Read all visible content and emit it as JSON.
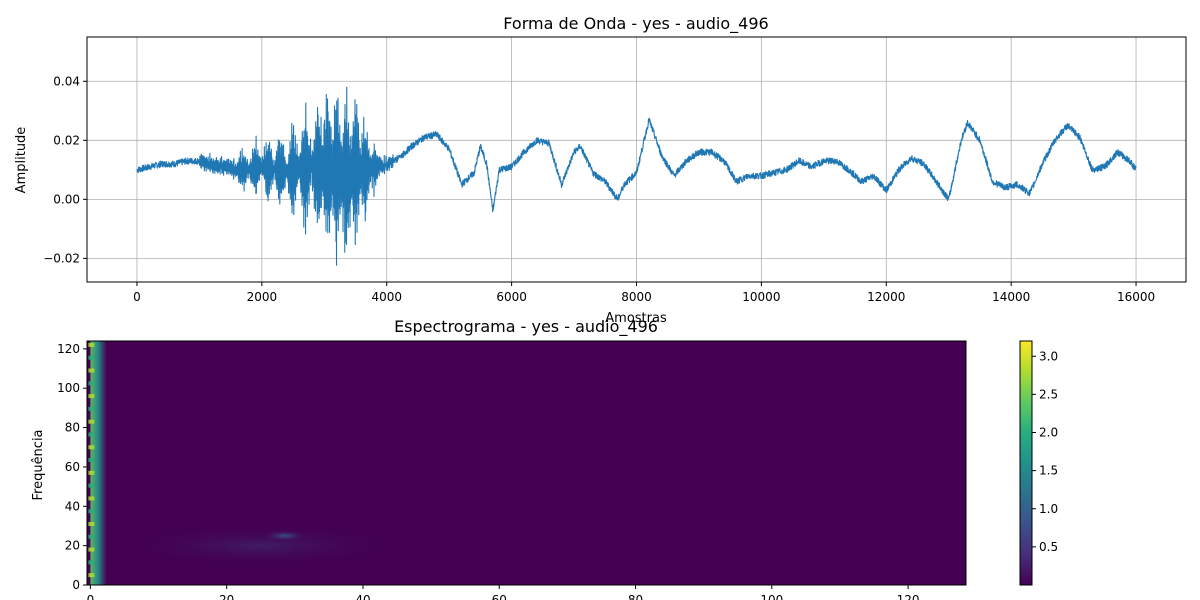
{
  "chart_data": [
    {
      "type": "line",
      "title": "Forma de Onda - yes - audio_496",
      "xlabel": "Amostras",
      "ylabel": "Amplitude",
      "xlim": [
        -800,
        16800
      ],
      "ylim": [
        -0.028,
        0.055
      ],
      "xticks": [
        0,
        2000,
        4000,
        6000,
        8000,
        10000,
        12000,
        14000,
        16000
      ],
      "xtick_labels": [
        "0",
        "2000",
        "4000",
        "6000",
        "8000",
        "10000",
        "12000",
        "14000",
        "16000"
      ],
      "yticks": [
        -0.02,
        0.0,
        0.02,
        0.04
      ],
      "ytick_labels": [
        "−0.02",
        "0.00",
        "0.02",
        "0.04"
      ],
      "grid": true,
      "color": "#1f77b4",
      "series": [
        {
          "x": [
            0,
            200,
            400,
            600,
            800,
            1000,
            1200,
            1400,
            1600,
            1800,
            2000,
            2200,
            2400,
            2600,
            2800,
            3000,
            3200,
            3400,
            3600,
            3800,
            4000,
            4200,
            4400,
            4600,
            4800,
            5000,
            5200,
            5400,
            5500,
            5600,
            5700,
            5800,
            6000,
            6200,
            6400,
            6600,
            6800,
            7000,
            7100,
            7300,
            7500,
            7700,
            7800,
            8000,
            8200,
            8400,
            8600,
            8800,
            9000,
            9200,
            9400,
            9600,
            9800,
            10000,
            10200,
            10400,
            10600,
            10800,
            11000,
            11200,
            11400,
            11600,
            11800,
            12000,
            12200,
            12400,
            12600,
            12800,
            13000,
            13200,
            13300,
            13500,
            13700,
            13900,
            14100,
            14300,
            14500,
            14700,
            14900,
            15100,
            15300,
            15500,
            15700,
            15900,
            16000
          ],
          "y": [
            0.01,
            0.011,
            0.012,
            0.012,
            0.013,
            0.013,
            0.012,
            0.011,
            0.01,
            0.01,
            0.011,
            0.01,
            0.009,
            0.01,
            0.011,
            0.01,
            0.009,
            0.008,
            0.01,
            0.011,
            0.012,
            0.014,
            0.018,
            0.021,
            0.022,
            0.017,
            0.005,
            0.009,
            0.018,
            0.012,
            -0.004,
            0.01,
            0.011,
            0.016,
            0.02,
            0.019,
            0.005,
            0.016,
            0.018,
            0.009,
            0.006,
            0.0,
            0.005,
            0.009,
            0.027,
            0.015,
            0.008,
            0.013,
            0.016,
            0.016,
            0.013,
            0.006,
            0.008,
            0.008,
            0.009,
            0.01,
            0.013,
            0.011,
            0.013,
            0.013,
            0.01,
            0.006,
            0.008,
            0.003,
            0.01,
            0.014,
            0.012,
            0.006,
            0.0,
            0.02,
            0.026,
            0.02,
            0.006,
            0.004,
            0.005,
            0.002,
            0.012,
            0.02,
            0.025,
            0.021,
            0.01,
            0.011,
            0.016,
            0.013,
            0.01
          ],
          "bursts": [
            {
              "x": 1700,
              "amp": 0.01
            },
            {
              "x": 1900,
              "amp": 0.012
            },
            {
              "x": 2100,
              "amp": 0.013
            },
            {
              "x": 2300,
              "amp": 0.016
            },
            {
              "x": 2500,
              "amp": 0.02
            },
            {
              "x": 2700,
              "amp": 0.027
            },
            {
              "x": 2900,
              "amp": 0.031
            },
            {
              "x": 3050,
              "amp": 0.036
            },
            {
              "x": 3200,
              "amp": 0.04
            },
            {
              "x": 3350,
              "amp": 0.036
            },
            {
              "x": 3500,
              "amp": 0.03
            },
            {
              "x": 3650,
              "amp": 0.02
            },
            {
              "x": 3800,
              "amp": 0.01
            }
          ]
        }
      ]
    },
    {
      "type": "heatmap",
      "title": "Espectrograma - yes - audio_496",
      "ylabel": "Frequência",
      "xlim": [
        -0.5,
        128.5
      ],
      "ylim": [
        0,
        124
      ],
      "xticks": [
        0,
        20,
        40,
        60,
        80,
        100,
        120
      ],
      "xtick_labels": [
        "0",
        "20",
        "40",
        "60",
        "80",
        "100",
        "120"
      ],
      "yticks": [
        0,
        20,
        40,
        60,
        80,
        100,
        120
      ],
      "ytick_labels": [
        "0",
        "20",
        "40",
        "60",
        "80",
        "100",
        "120"
      ],
      "colormap": "viridis",
      "colorbar": {
        "range": [
          0.0,
          3.2
        ],
        "ticks": [
          0.5,
          1.0,
          1.5,
          2.0,
          2.5,
          3.0
        ],
        "tick_labels": [
          "0.5",
          "1.0",
          "1.5",
          "2.0",
          "2.5",
          "3.0"
        ]
      },
      "hot_regions": [
        {
          "x": [
            0,
            1.5
          ],
          "y": [
            0,
            124
          ],
          "intensity": 0.6
        },
        {
          "x": [
            5,
            45
          ],
          "y": [
            10,
            30
          ],
          "intensity": 0.15
        },
        {
          "x": [
            25,
            32
          ],
          "y": [
            22,
            28
          ],
          "intensity": 0.45
        }
      ]
    }
  ]
}
